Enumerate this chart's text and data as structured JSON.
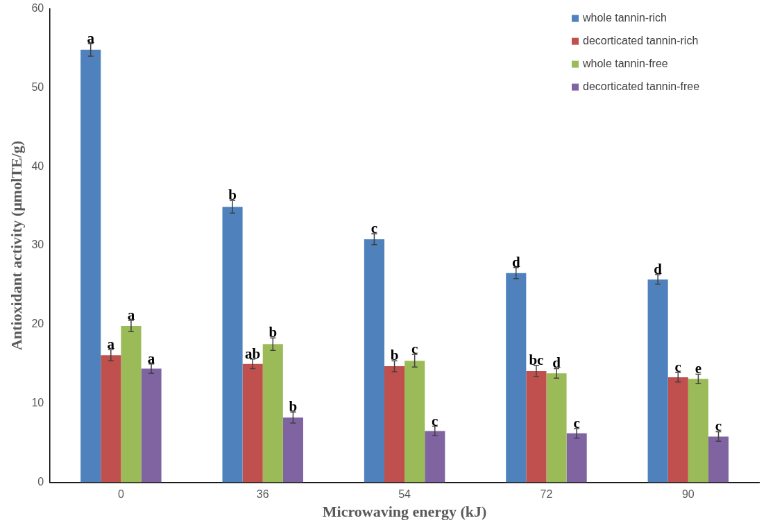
{
  "chart_data": {
    "type": "bar",
    "xlabel": "Microwaving energy (kJ)",
    "ylabel": "Antioxidant activity (μmolTE/g)",
    "categories": [
      "0",
      "36",
      "54",
      "72",
      "90"
    ],
    "ylim": [
      0,
      60
    ],
    "yticks": [
      0,
      10,
      20,
      30,
      40,
      50,
      60
    ],
    "grid": false,
    "legend": "top right",
    "series": [
      {
        "name": "whole tannin-rich",
        "color": "#4f81bd",
        "values": [
          54.8,
          34.9,
          30.8,
          26.5,
          25.7
        ],
        "errors": [
          0.8,
          0.8,
          0.7,
          0.7,
          0.6
        ],
        "value_labels": [
          "a",
          "b",
          "c",
          "d",
          "d"
        ]
      },
      {
        "name": "decorticated tannin-rich",
        "color": "#c0504d",
        "values": [
          16.1,
          15.0,
          14.7,
          14.1,
          13.3
        ],
        "errors": [
          0.7,
          0.6,
          0.7,
          0.7,
          0.6
        ],
        "value_labels": [
          "a",
          "ab",
          "b",
          "bc",
          "c"
        ]
      },
      {
        "name": "whole tannin-free",
        "color": "#9bbb59",
        "values": [
          19.8,
          17.5,
          15.4,
          13.8,
          13.1
        ],
        "errors": [
          0.7,
          0.8,
          0.8,
          0.6,
          0.6
        ],
        "value_labels": [
          "a",
          "b",
          "c",
          "d",
          "e"
        ]
      },
      {
        "name": "decorticated tannin-free",
        "color": "#8064a2",
        "values": [
          14.4,
          8.2,
          6.5,
          6.2,
          5.8
        ],
        "errors": [
          0.6,
          0.7,
          0.6,
          0.6,
          0.6
        ],
        "value_labels": [
          "a",
          "b",
          "c",
          "c",
          "c"
        ]
      }
    ]
  }
}
